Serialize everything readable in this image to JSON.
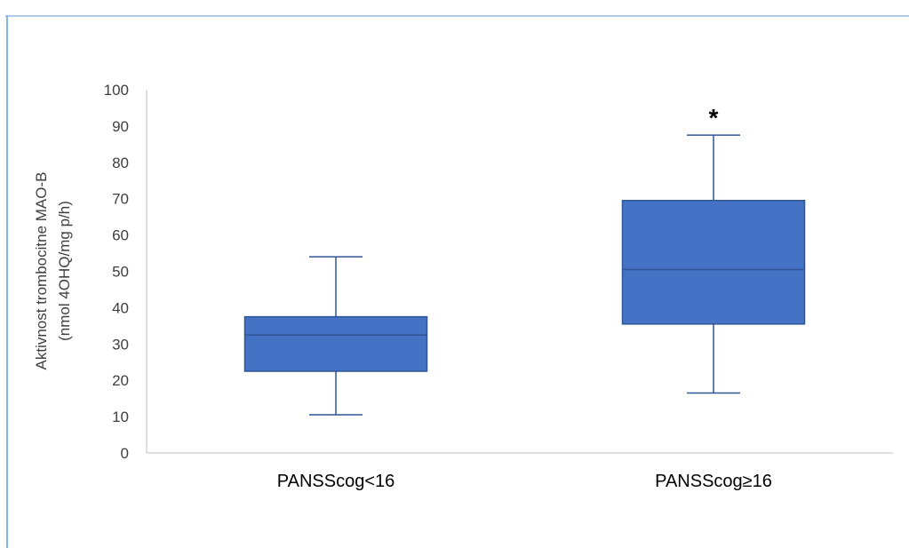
{
  "chart_data": {
    "type": "boxplot",
    "ylabel": [
      "Aktivnost trombocitne MAO-B",
      "(nmol 4OHQ/mg p/h)"
    ],
    "ylim": [
      0,
      100
    ],
    "yticks": [
      0,
      10,
      20,
      30,
      40,
      50,
      60,
      70,
      80,
      90,
      100
    ],
    "categories": [
      "PANSScog<16",
      "PANSScog≥16"
    ],
    "boxes": [
      {
        "category": "PANSScog<16",
        "min": 10.5,
        "q1": 22.5,
        "median": 32.5,
        "q3": 37.5,
        "max": 54,
        "annotation": ""
      },
      {
        "category": "PANSScog≥16",
        "min": 16.5,
        "q1": 35.5,
        "median": 50.5,
        "q3": 69.5,
        "max": 87.5,
        "annotation": "*"
      }
    ],
    "colors": {
      "box_fill": "#4472C4",
      "box_stroke": "#2F5597",
      "axis": "#BFBFBF",
      "frame": "#5B9BD5"
    },
    "grid": false,
    "legend": "none"
  }
}
